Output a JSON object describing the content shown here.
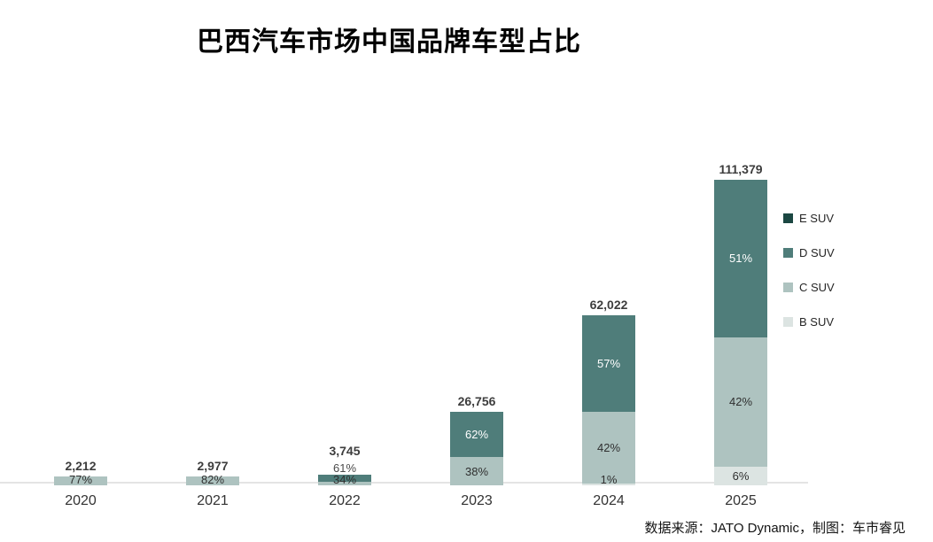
{
  "title": "巴西汽车市场中国品牌车型占比",
  "source_note": "数据来源：JATO Dynamic，制图：车市睿见",
  "chart_data": {
    "type": "bar",
    "stacked": true,
    "title": "巴西汽车市场中国品牌车型占比",
    "categories": [
      "2020",
      "2021",
      "2022",
      "2023",
      "2024",
      "2025"
    ],
    "totals": [
      2212,
      2977,
      3745,
      26756,
      62022,
      111379
    ],
    "total_labels": [
      "2,212",
      "2,977",
      "3,745",
      "26,756",
      "62,022",
      "111,379"
    ],
    "series": [
      {
        "name": "E SUV",
        "color": "#1b4742",
        "label_style": "light",
        "pct": [
          null,
          null,
          null,
          null,
          null,
          null
        ]
      },
      {
        "name": "D SUV",
        "color": "#4f7d7a",
        "label_style": "light",
        "pct": [
          null,
          null,
          61,
          62,
          57,
          51
        ]
      },
      {
        "name": "C SUV",
        "color": "#aec3c0",
        "label_style": "dark",
        "pct": [
          77,
          82,
          34,
          38,
          42,
          42
        ]
      },
      {
        "name": "B SUV",
        "color": "#dce4e2",
        "label_style": "dark",
        "pct": [
          null,
          null,
          null,
          null,
          1,
          6
        ]
      }
    ],
    "legend": [
      "E SUV",
      "D SUV",
      "C SUV",
      "B SUV"
    ],
    "legend_position": "right",
    "grid": false,
    "xlabel": "",
    "ylabel": "",
    "ylim": [
      0,
      120000
    ],
    "value_label_suffix": "%"
  }
}
